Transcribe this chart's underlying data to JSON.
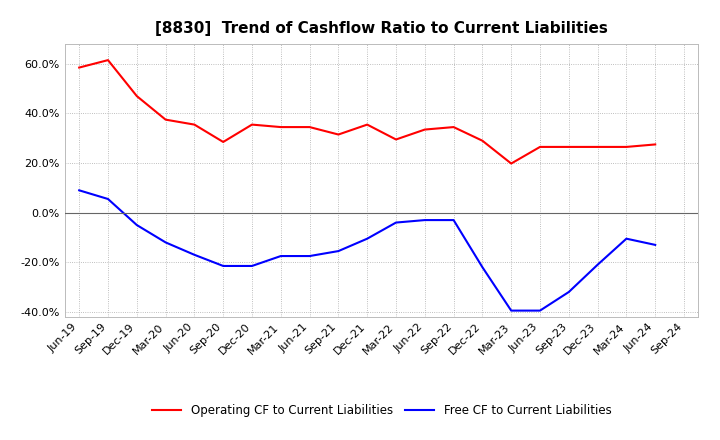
{
  "title": "[8830]  Trend of Cashflow Ratio to Current Liabilities",
  "x_labels": [
    "Jun-19",
    "Sep-19",
    "Dec-19",
    "Mar-20",
    "Jun-20",
    "Sep-20",
    "Dec-20",
    "Mar-21",
    "Jun-21",
    "Sep-21",
    "Dec-21",
    "Mar-22",
    "Jun-22",
    "Sep-22",
    "Dec-22",
    "Mar-23",
    "Jun-23",
    "Sep-23",
    "Dec-23",
    "Mar-24",
    "Jun-24",
    "Sep-24"
  ],
  "operating_cf": [
    0.585,
    0.615,
    0.47,
    0.375,
    0.355,
    0.285,
    0.355,
    0.345,
    0.345,
    0.315,
    0.355,
    0.295,
    0.335,
    0.345,
    0.29,
    0.198,
    0.265,
    0.265,
    0.265,
    0.265,
    0.275,
    null
  ],
  "free_cf": [
    0.09,
    0.055,
    -0.05,
    -0.12,
    -0.17,
    -0.215,
    -0.215,
    -0.175,
    -0.175,
    -0.155,
    -0.105,
    -0.04,
    -0.03,
    -0.03,
    -0.22,
    -0.395,
    -0.395,
    -0.32,
    -0.21,
    -0.105,
    -0.13,
    null
  ],
  "ylim": [
    -0.42,
    0.68
  ],
  "yticks": [
    -0.4,
    -0.2,
    0.0,
    0.2,
    0.4,
    0.6
  ],
  "operating_color": "#FF0000",
  "free_color": "#0000FF",
  "bg_color": "#FFFFFF",
  "plot_bg_color": "#FFFFFF",
  "grid_color": "#AAAAAA",
  "legend_op": "Operating CF to Current Liabilities",
  "legend_free": "Free CF to Current Liabilities",
  "title_fontsize": 11,
  "axis_fontsize": 8,
  "legend_fontsize": 8.5
}
